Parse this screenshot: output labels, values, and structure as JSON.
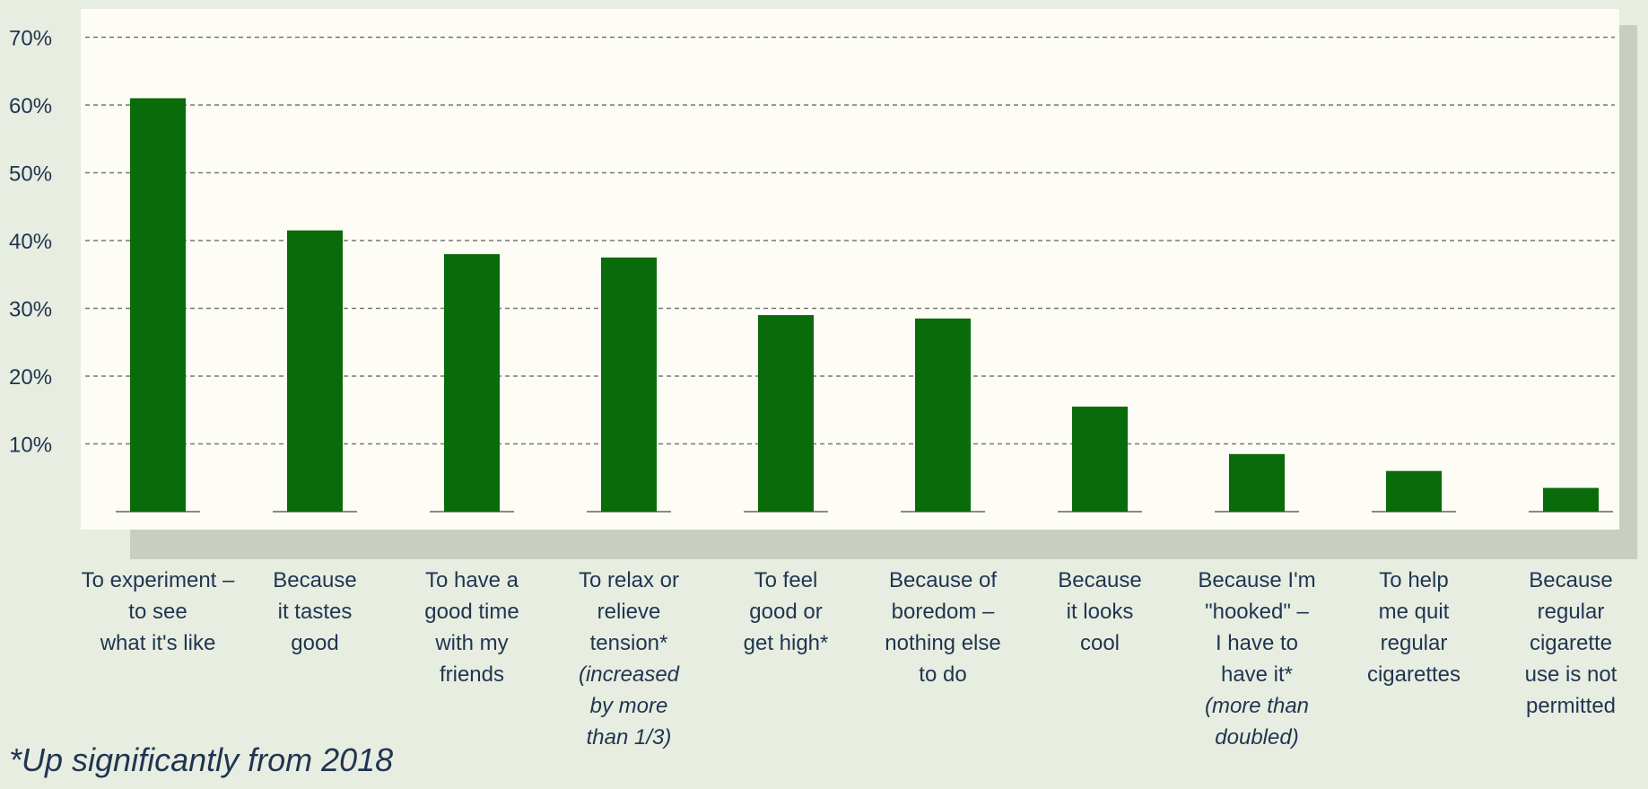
{
  "chart_data": {
    "type": "bar",
    "categories": [
      "To experiment –\nto see\nwhat it's like",
      "Because\nit tastes\ngood",
      "To have a\ngood time\nwith my\nfriends",
      "To relax or\nrelieve\ntension*",
      "To feel\ngood or\nget high*",
      "Because of\nboredom –\nnothing else\nto do",
      "Because\nit looks\ncool",
      "Because I'm\n\"hooked\" –\nI have to\nhave it*",
      "To help\nme quit\nregular\ncigarettes",
      "Because\nregular\ncigarette\nuse is not\npermitted"
    ],
    "notes": [
      "",
      "",
      "",
      "(increased\nby more\nthan 1/3)",
      "",
      "",
      "",
      "(more than\ndoubled)",
      "",
      ""
    ],
    "values": [
      61,
      41.5,
      38,
      37.5,
      29,
      28.5,
      15.5,
      8.5,
      6,
      3.5
    ],
    "yticks": [
      "10%",
      "20%",
      "30%",
      "40%",
      "50%",
      "60%",
      "70%"
    ],
    "ytick_values": [
      10,
      20,
      30,
      40,
      50,
      60,
      70
    ],
    "ylim": [
      0,
      70
    ],
    "grid": true,
    "colors": {
      "bar": "#0a6b0a",
      "plot_bg": "#fdfdf5",
      "page_bg": "#e8ede1",
      "shadow": "#c9cfc0",
      "grid": "#777777",
      "text": "#1f3550"
    }
  },
  "footnote": "*Up significantly from 2018"
}
